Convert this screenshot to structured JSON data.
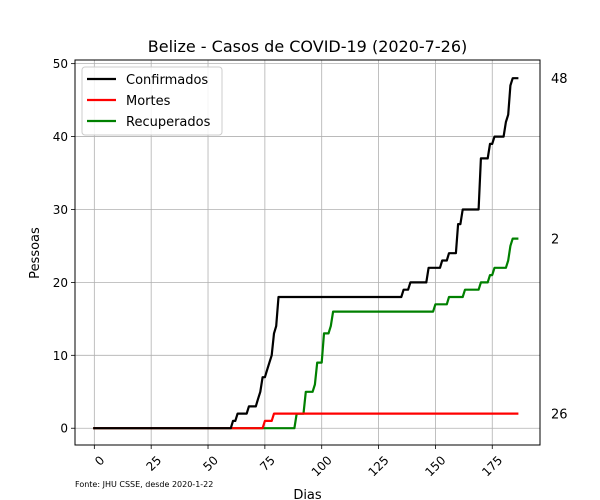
{
  "chart_data": {
    "type": "line",
    "title": "Belize - Casos de COVID-19 (2020-7-26)",
    "xlabel": "Dias",
    "ylabel": "Pessoas",
    "source_note": "Fonte: JHU CSSE, desde 2020-1-22",
    "xlim": [
      -8.5,
      196
    ],
    "ylim": [
      -2.3,
      50.5
    ],
    "xticks": [
      0,
      25,
      50,
      75,
      100,
      125,
      150,
      175
    ],
    "yticks": [
      0,
      10,
      20,
      30,
      40,
      50
    ],
    "grid": true,
    "legend_position": "upper-left",
    "end_labels": [
      "48",
      "26",
      "2"
    ],
    "series": [
      {
        "name": "Confirmados",
        "color": "#000000",
        "points": [
          [
            0,
            0
          ],
          [
            60,
            0
          ],
          [
            61,
            1
          ],
          [
            62,
            1
          ],
          [
            63,
            2
          ],
          [
            67,
            2
          ],
          [
            68,
            3
          ],
          [
            71,
            3
          ],
          [
            72,
            4
          ],
          [
            73,
            5
          ],
          [
            74,
            7
          ],
          [
            75,
            7
          ],
          [
            76,
            8
          ],
          [
            77,
            9
          ],
          [
            78,
            10
          ],
          [
            79,
            13
          ],
          [
            80,
            14
          ],
          [
            81,
            18
          ],
          [
            135,
            18
          ],
          [
            136,
            19
          ],
          [
            138,
            19
          ],
          [
            139,
            20
          ],
          [
            146,
            20
          ],
          [
            147,
            22
          ],
          [
            152,
            22
          ],
          [
            153,
            23
          ],
          [
            155,
            23
          ],
          [
            156,
            24
          ],
          [
            159,
            24
          ],
          [
            160,
            28
          ],
          [
            161,
            28
          ],
          [
            162,
            30
          ],
          [
            169,
            30
          ],
          [
            170,
            37
          ],
          [
            173,
            37
          ],
          [
            174,
            39
          ],
          [
            175,
            39
          ],
          [
            176,
            40
          ],
          [
            180,
            40
          ],
          [
            181,
            42
          ],
          [
            182,
            43
          ],
          [
            183,
            47
          ],
          [
            184,
            48
          ],
          [
            186,
            48
          ]
        ]
      },
      {
        "name": "Mortes",
        "color": "#ff0000",
        "points": [
          [
            0,
            0
          ],
          [
            74,
            0
          ],
          [
            75,
            1
          ],
          [
            78,
            1
          ],
          [
            79,
            2
          ],
          [
            186,
            2
          ]
        ]
      },
      {
        "name": "Recuperados",
        "color": "#008000",
        "points": [
          [
            0,
            0
          ],
          [
            88,
            0
          ],
          [
            89,
            2
          ],
          [
            92,
            2
          ],
          [
            93,
            5
          ],
          [
            96,
            5
          ],
          [
            97,
            6
          ],
          [
            98,
            9
          ],
          [
            100,
            9
          ],
          [
            101,
            13
          ],
          [
            103,
            13
          ],
          [
            104,
            14
          ],
          [
            105,
            16
          ],
          [
            149,
            16
          ],
          [
            150,
            17
          ],
          [
            155,
            17
          ],
          [
            156,
            18
          ],
          [
            162,
            18
          ],
          [
            163,
            19
          ],
          [
            169,
            19
          ],
          [
            170,
            20
          ],
          [
            173,
            20
          ],
          [
            174,
            21
          ],
          [
            175,
            21
          ],
          [
            176,
            22
          ],
          [
            181,
            22
          ],
          [
            182,
            23
          ],
          [
            183,
            25
          ],
          [
            184,
            26
          ],
          [
            186,
            26
          ]
        ]
      }
    ]
  }
}
